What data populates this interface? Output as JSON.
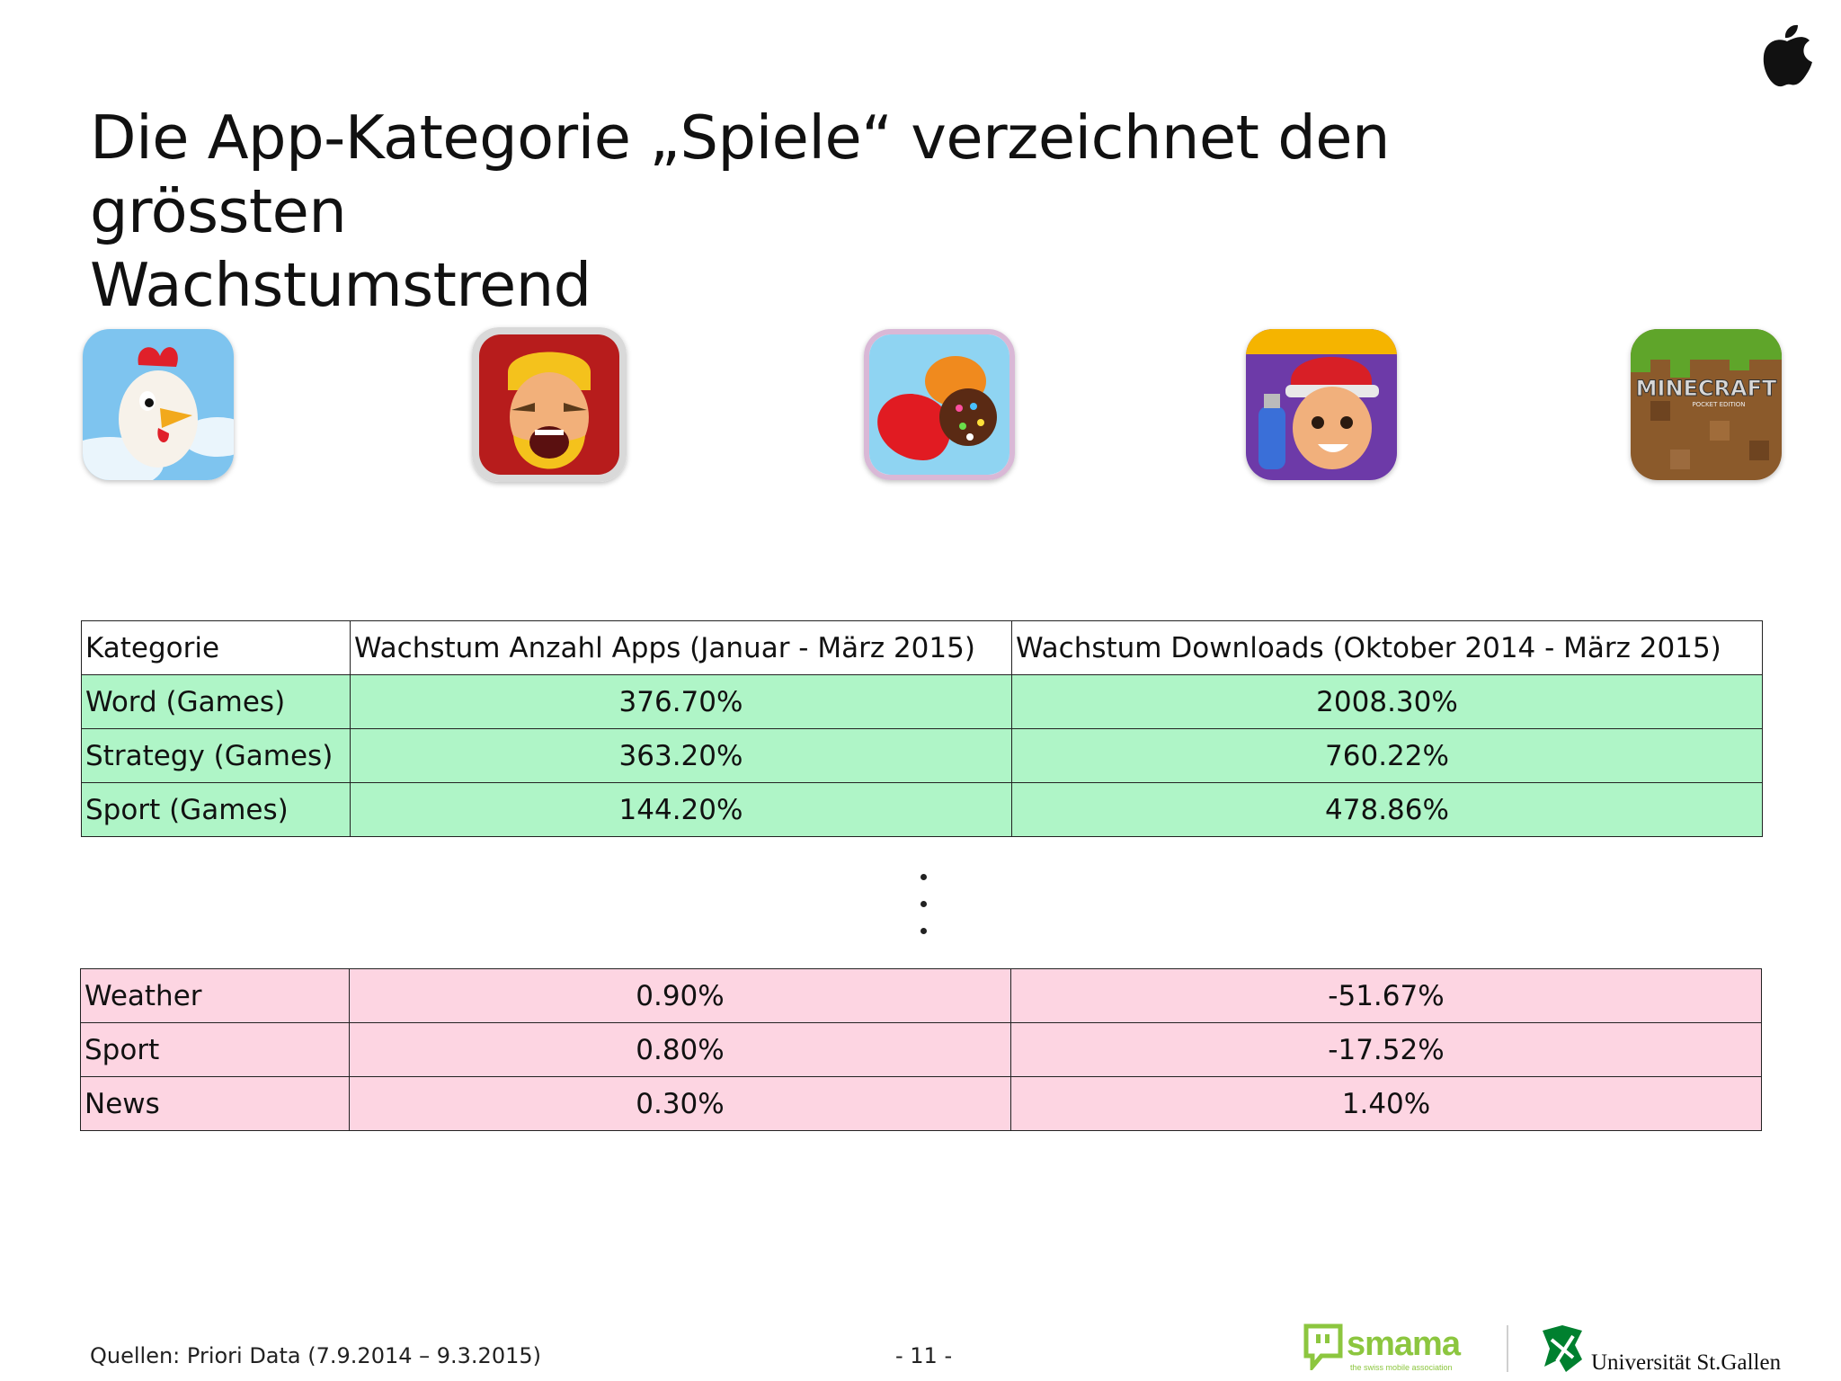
{
  "slide": {
    "title_line1": "Die App-Kategorie „Spiele“ verzeichnet den grössten",
    "title_line2": "Wachstumstrend"
  },
  "icons": [
    {
      "name": "hay-day-icon"
    },
    {
      "name": "clash-of-clans-icon"
    },
    {
      "name": "candy-crush-icon"
    },
    {
      "name": "subway-surfers-icon"
    },
    {
      "name": "minecraft-icon",
      "label": "MINECRAFT",
      "sublabel": "POCKET EDITION"
    }
  ],
  "top_table": {
    "headers": [
      "Kategorie",
      "Wachstum Anzahl Apps (Januar - März 2015)",
      "Wachstum Downloads (Oktober 2014 - März 2015)"
    ],
    "rows": [
      [
        "Word (Games)",
        "376.70%",
        "2008.30%"
      ],
      [
        "Strategy (Games)",
        "363.20%",
        "760.22%"
      ],
      [
        "Sport (Games)",
        "144.20%",
        "478.86%"
      ]
    ]
  },
  "bottom_table": {
    "rows": [
      [
        "Weather",
        "0.90%",
        "-51.67%"
      ],
      [
        "Sport",
        "0.80%",
        "-17.52%"
      ],
      [
        "News",
        "0.30%",
        "1.40%"
      ]
    ]
  },
  "footer": {
    "source": "Quellen: Priori Data (7.9.2014 – 9.3.2015)",
    "page": "- 11 -",
    "smama_name": "smama",
    "smama_tagline": "the swiss mobile association",
    "university": "Universität St.Gallen"
  },
  "colors": {
    "top_rows": "#aff5c7",
    "bottom_rows": "#fdd5e2",
    "smama_green": "#8cc63f",
    "hsg_green": "#00802f"
  }
}
